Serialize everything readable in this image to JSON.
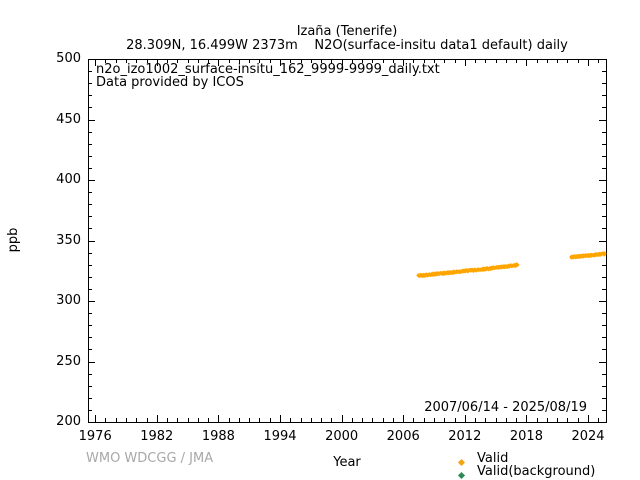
{
  "header": {
    "title": "Izaña (Tenerife)",
    "subtitle": "28.309N, 16.499W 2373m    N2O(surface-insitu data1 default) daily"
  },
  "plot_annotations": {
    "source_file": "n2o_izo1002_surface-insitu_162_9999-9999_daily.txt",
    "provider": "Data provided by ICOS",
    "date_range": "2007/06/14 - 2025/08/19"
  },
  "footer": {
    "credit": "WMO WDCGG / JMA"
  },
  "legend": {
    "items": [
      {
        "label": "Valid",
        "marker": "diamond-icon",
        "color": "#f5a30f"
      },
      {
        "label": "Valid(background)",
        "marker": "diamond-icon",
        "color": "#2e8b57"
      }
    ]
  },
  "colors": {
    "valid": "#ffa500",
    "valid_background": "#2e8b57",
    "axis": "#000000",
    "credit_gray": "#a8a8a8"
  },
  "chart_data": {
    "type": "scatter",
    "title": "Izaña (Tenerife)",
    "xlabel": "Year",
    "ylabel": "ppb",
    "xlim": [
      1975.3,
      2025.75
    ],
    "ylim": [
      200,
      500
    ],
    "x_major_ticks": [
      1976,
      1982,
      1988,
      1994,
      2000,
      2006,
      2012,
      2018,
      2024
    ],
    "x_minor_step_years": 1,
    "y_major_ticks": [
      200,
      250,
      300,
      350,
      400,
      450,
      500
    ],
    "y_minor_step": 10,
    "grid": false,
    "legend_position": "bottom-right-outside",
    "series": [
      {
        "name": "Valid",
        "color": "#ffa500",
        "marker": "filled-diamond",
        "band_halfwidth_ppb": 0.7,
        "points_per_year": 40,
        "segments": [
          [
            [
              2007.45,
              321.0
            ],
            [
              2008.1,
              321.4
            ],
            [
              2009,
              322.2
            ],
            [
              2010,
              323.0
            ],
            [
              2011,
              323.9
            ],
            [
              2012,
              324.8
            ],
            [
              2013,
              325.6
            ],
            [
              2014,
              326.5
            ],
            [
              2015,
              327.4
            ],
            [
              2016,
              328.5
            ],
            [
              2016.7,
              329.3
            ],
            [
              2017.15,
              329.8
            ]
          ],
          [
            [
              2022.35,
              336.3
            ],
            [
              2023,
              336.8
            ],
            [
              2024,
              337.6
            ],
            [
              2025,
              338.5
            ],
            [
              2025.63,
              338.9
            ]
          ]
        ]
      },
      {
        "name": "Valid(background)",
        "color": "#2e8b57",
        "marker": "filled-diamond",
        "band_halfwidth_ppb": 0,
        "points_per_year": 0,
        "segments": []
      }
    ]
  }
}
